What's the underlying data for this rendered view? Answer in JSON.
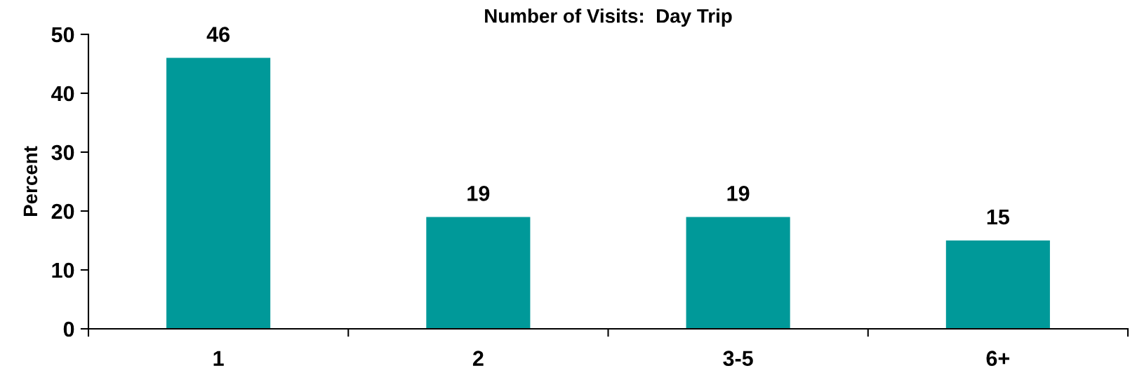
{
  "chart_data": {
    "type": "bar",
    "title": "Number of Visits:  Day Trip",
    "ylabel": "Percent",
    "categories": [
      "1",
      "2",
      "3-5",
      "6+"
    ],
    "values": [
      46,
      19,
      19,
      15
    ],
    "color": "#009999",
    "ylim": [
      0,
      50
    ],
    "yticks": [
      0,
      10,
      20,
      30,
      40,
      50
    ],
    "grid": false,
    "data_labels": true
  }
}
